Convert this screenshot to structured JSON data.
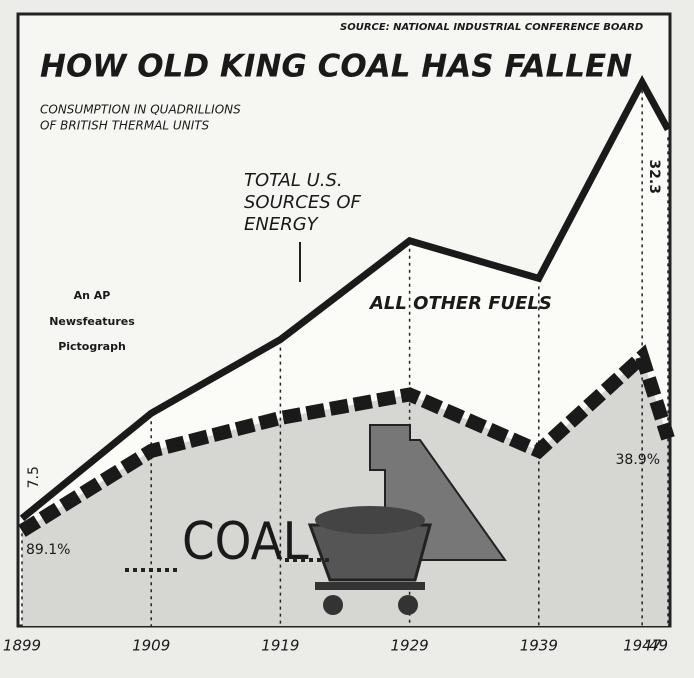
{
  "chart_data": {
    "type": "line",
    "title": "HOW OLD KING COAL HAS FALLEN",
    "subtitle": [
      "CONSUMPTION IN QUADRILLIONS",
      "OF BRITISH THERMAL UNITS"
    ],
    "source": "SOURCE: NATIONAL INDUSTRIAL CONFERENCE BOARD",
    "credit": [
      "An AP",
      "Newsfeatures",
      "Pictograph"
    ],
    "x": [
      1899,
      1909,
      1919,
      1929,
      1939,
      1947,
      1949
    ],
    "xlim": [
      1899,
      1949
    ],
    "xticks": [
      1899,
      1909,
      1919,
      1929,
      1939,
      1947,
      {
        "value": 1949,
        "label": "'49"
      }
    ],
    "ylim": [
      0,
      38
    ],
    "series": [
      {
        "name": "TOTAL U.S. SOURCES OF ENERGY",
        "color": "#1a1a1a",
        "values": [
          7.5,
          14.2,
          18.9,
          25.2,
          22.8,
          35.3,
          32.3
        ]
      },
      {
        "name": "COAL",
        "color": "#1a1a1a",
        "values": [
          6.7,
          11.8,
          13.9,
          15.4,
          11.8,
          17.8,
          12.6
        ]
      }
    ],
    "other_label": "ALL OTHER FUELS",
    "share_labels": [
      {
        "x": 1899,
        "text": "89.1%"
      },
      {
        "x": 1949,
        "text": "38.9%"
      }
    ]
  }
}
